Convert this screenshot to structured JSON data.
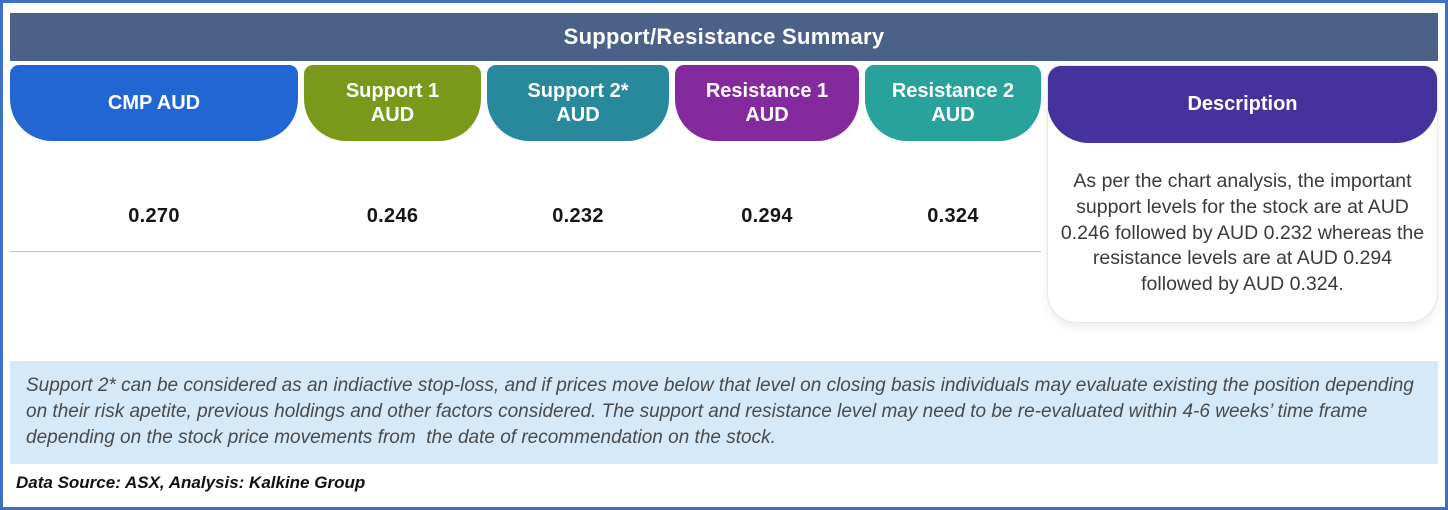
{
  "header": {
    "title": "Support/Resistance Summary"
  },
  "table": {
    "columns": [
      {
        "label": "CMP AUD",
        "value": "0.270",
        "color": "#2266d3"
      },
      {
        "label": "Support 1 AUD",
        "value": "0.246",
        "color": "#7a991a"
      },
      {
        "label": "Support 2* AUD",
        "value": "0.232",
        "color": "#27899b"
      },
      {
        "label": "Resistance 1 AUD",
        "value": "0.294",
        "color": "#85299e"
      },
      {
        "label": "Resistance 2 AUD",
        "value": "0.324",
        "color": "#29a29b"
      }
    ],
    "description": {
      "label": "Description",
      "color": "#46329c",
      "text": "As per the chart analysis, the important support levels for the stock are at AUD 0.246 followed by AUD 0.232 whereas the resistance levels are at AUD 0.294 followed by AUD 0.324."
    }
  },
  "disclaimer": {
    "text": "Support 2* can be considered as an indiactive stop-loss, and if prices move below that level on closing basis individuals may evaluate existing the position depending on their risk apetite, previous holdings and other factors considered. The support and resistance level may need to be re-evaluated within 4-6 weeks’ time frame depending on the stock price movements from  the date of recommendation on the stock."
  },
  "footer": {
    "data_source": "Data Source: ASX, Analysis: Kalkine Group"
  },
  "colors": {
    "frame_border": "#3d6fc7",
    "header_bar": "#4c6187",
    "disclaimer_bg": "#d6e9f9"
  },
  "chart_data": {
    "type": "table",
    "title": "Support/Resistance Summary",
    "columns": [
      "CMP AUD",
      "Support 1 AUD",
      "Support 2* AUD",
      "Resistance 1 AUD",
      "Resistance 2 AUD",
      "Description"
    ],
    "rows": [
      [
        "0.270",
        "0.246",
        "0.232",
        "0.294",
        "0.324",
        "As per the chart analysis, the important support levels for the stock are at AUD 0.246 followed by AUD 0.232 whereas the resistance levels are at AUD 0.294 followed by AUD 0.324."
      ]
    ],
    "currency": "AUD",
    "support_levels": [
      0.246,
      0.232
    ],
    "resistance_levels": [
      0.294,
      0.324
    ],
    "cmp": 0.27
  }
}
